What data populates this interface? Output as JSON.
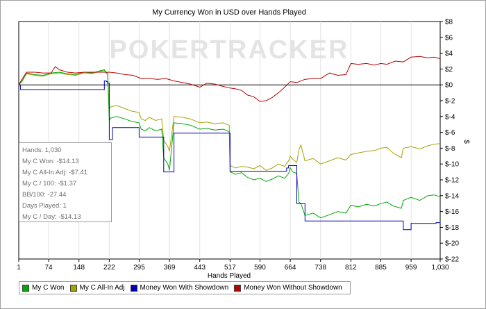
{
  "chart_data": {
    "type": "line",
    "title": "My Currency Won in USD over Hands Played",
    "xlabel": "Hands Played",
    "ylabel": "$",
    "watermark": "POKERTRACKER",
    "xlim": [
      1,
      1030
    ],
    "ylim": [
      -22,
      8
    ],
    "xticks": [
      1,
      74,
      148,
      222,
      295,
      369,
      443,
      517,
      590,
      664,
      738,
      812,
      885,
      959,
      1030
    ],
    "xtick_labels": [
      "1",
      "74",
      "148",
      "222",
      "295",
      "369",
      "443",
      "517",
      "590",
      "664",
      "738",
      "812",
      "885",
      "959",
      "1,030"
    ],
    "yticks": [
      8,
      6,
      4,
      2,
      0,
      -2,
      -4,
      -6,
      -8,
      -10,
      -12,
      -14,
      -16,
      -18,
      -20,
      -22
    ],
    "ytick_labels": [
      "$8",
      "$6",
      "$4",
      "$2",
      "$0",
      "$-2",
      "$-4",
      "$-6",
      "$-8",
      "$-10",
      "$-12",
      "$-14",
      "$-16",
      "$-18",
      "$-20",
      "$-22"
    ],
    "grid": "vertical",
    "legend_position": "bottom-left",
    "series": [
      {
        "name": "My C Won",
        "color": "#00aa00",
        "x": [
          1,
          10,
          20,
          40,
          60,
          80,
          100,
          120,
          140,
          160,
          180,
          200,
          210,
          215,
          218,
          222,
          225,
          240,
          260,
          275,
          295,
          300,
          310,
          320,
          335,
          350,
          355,
          365,
          369,
          380,
          400,
          420,
          443,
          460,
          480,
          500,
          515,
          517,
          530,
          545,
          560,
          575,
          590,
          605,
          620,
          635,
          650,
          660,
          664,
          670,
          680,
          685,
          690,
          700,
          720,
          738,
          760,
          780,
          800,
          812,
          830,
          850,
          870,
          885,
          900,
          915,
          935,
          940,
          959,
          980,
          1000,
          1015,
          1030
        ],
        "y": [
          0,
          0.5,
          1.5,
          1.3,
          1.2,
          1.5,
          1.6,
          1.4,
          1.3,
          1.6,
          1.5,
          1.8,
          1.9,
          1.5,
          1.6,
          -4.5,
          -4.2,
          -4.0,
          -4.3,
          -4.6,
          -4.8,
          -5.6,
          -5.8,
          -5.4,
          -5.8,
          -5.6,
          -9.2,
          -10.0,
          -10.8,
          -4.8,
          -4.9,
          -5.1,
          -5.6,
          -5.5,
          -5.7,
          -5.6,
          -5.9,
          -11.0,
          -11.3,
          -11.1,
          -11.7,
          -12.0,
          -11.8,
          -12.2,
          -11.9,
          -11.5,
          -11.8,
          -11.2,
          -10.5,
          -11.0,
          -11.2,
          -14.8,
          -15.0,
          -16.5,
          -16.2,
          -16.8,
          -16.4,
          -16.0,
          -16.2,
          -15.2,
          -15.4,
          -15.1,
          -15.3,
          -15.0,
          -14.8,
          -15.3,
          -15.6,
          -14.6,
          -14.2,
          -14.6,
          -14.0,
          -13.9,
          -14.13
        ]
      },
      {
        "name": "My C All-In Adj",
        "color": "#a4a400",
        "x": [
          1,
          10,
          20,
          40,
          60,
          80,
          100,
          120,
          140,
          160,
          180,
          200,
          210,
          215,
          218,
          222,
          225,
          240,
          260,
          275,
          295,
          300,
          310,
          320,
          335,
          350,
          355,
          365,
          369,
          380,
          400,
          420,
          443,
          460,
          480,
          500,
          515,
          517,
          530,
          545,
          560,
          575,
          590,
          605,
          620,
          635,
          650,
          660,
          664,
          670,
          680,
          685,
          690,
          700,
          720,
          738,
          760,
          780,
          800,
          812,
          830,
          850,
          870,
          885,
          900,
          915,
          935,
          940,
          959,
          980,
          1000,
          1015,
          1030
        ],
        "y": [
          0,
          0.6,
          1.4,
          1.2,
          1.1,
          1.4,
          1.5,
          1.3,
          1.2,
          1.5,
          1.4,
          1.7,
          1.8,
          1.4,
          1.5,
          -3.1,
          -2.8,
          -2.6,
          -3.0,
          -3.3,
          -3.5,
          -4.3,
          -4.5,
          -4.1,
          -4.5,
          -4.3,
          -7.0,
          -7.8,
          -8.4,
          -4.0,
          -4.1,
          -4.3,
          -4.8,
          -4.7,
          -4.9,
          -4.8,
          -5.1,
          -10.2,
          -10.5,
          -10.3,
          -10.4,
          -10.6,
          -10.2,
          -10.8,
          -10.5,
          -10.0,
          -10.3,
          -9.6,
          -9.0,
          -9.4,
          -9.8,
          -8.2,
          -7.6,
          -9.6,
          -9.3,
          -10.0,
          -9.6,
          -9.2,
          -9.5,
          -8.8,
          -8.6,
          -8.4,
          -8.3,
          -8.0,
          -7.9,
          -8.6,
          -9.2,
          -8.0,
          -7.8,
          -8.1,
          -7.7,
          -7.5,
          -7.41
        ]
      },
      {
        "name": "Money Won With Showdown",
        "color": "#0000bb",
        "x": [
          1,
          5,
          10,
          40,
          60,
          100,
          140,
          180,
          210,
          215,
          218,
          222,
          225,
          230,
          240,
          270,
          290,
          295,
          300,
          340,
          350,
          355,
          365,
          369,
          380,
          420,
          460,
          500,
          515,
          517,
          530,
          560,
          580,
          600,
          620,
          640,
          655,
          660,
          664,
          670,
          680,
          685,
          690,
          700,
          720,
          738,
          780,
          820,
          860,
          900,
          935,
          940,
          950,
          959,
          980,
          1000,
          1020,
          1030
        ],
        "y": [
          0,
          -0.6,
          -0.6,
          -0.6,
          -0.6,
          -0.6,
          -0.6,
          -0.6,
          0.5,
          0.4,
          0.2,
          -6.9,
          -6.9,
          -5.4,
          -5.4,
          -5.4,
          -5.4,
          -6.6,
          -6.6,
          -6.6,
          -6.6,
          -11.0,
          -11.0,
          -11.0,
          -6.1,
          -6.1,
          -6.1,
          -6.1,
          -6.1,
          -10.9,
          -10.9,
          -10.9,
          -10.9,
          -10.9,
          -10.9,
          -10.9,
          -10.5,
          -10.2,
          -10.2,
          -10.2,
          -15.0,
          -15.0,
          -15.0,
          -17.2,
          -17.2,
          -17.2,
          -17.2,
          -17.2,
          -17.2,
          -17.2,
          -17.2,
          -18.3,
          -18.3,
          -17.5,
          -17.5,
          -17.5,
          -17.4,
          -17.3
        ]
      },
      {
        "name": "Money Won Without Showdown",
        "color": "#bb0000",
        "x": [
          1,
          10,
          20,
          40,
          60,
          80,
          90,
          100,
          120,
          140,
          160,
          180,
          200,
          222,
          240,
          260,
          280,
          300,
          320,
          340,
          360,
          380,
          400,
          420,
          443,
          460,
          480,
          500,
          517,
          530,
          545,
          560,
          575,
          590,
          605,
          620,
          640,
          664,
          680,
          700,
          720,
          738,
          760,
          780,
          800,
          812,
          830,
          850,
          870,
          885,
          900,
          920,
          940,
          959,
          980,
          1000,
          1015,
          1030
        ],
        "y": [
          0,
          0.8,
          1.6,
          1.6,
          1.5,
          1.5,
          2.3,
          1.9,
          1.6,
          1.5,
          1.6,
          1.6,
          1.6,
          1.6,
          1.5,
          1.3,
          1.2,
          0.8,
          0.8,
          0.7,
          0.8,
          0.5,
          0.3,
          0.1,
          -0.3,
          0.2,
          0.1,
          -0.2,
          -0.4,
          -0.5,
          -0.7,
          -1.3,
          -1.5,
          -2.1,
          -2.0,
          -1.6,
          -0.8,
          0.4,
          0.3,
          0.7,
          0.8,
          0.8,
          1.5,
          1.2,
          1.3,
          2.7,
          2.6,
          2.7,
          2.5,
          2.7,
          2.6,
          3.0,
          2.9,
          3.5,
          3.6,
          3.4,
          3.5,
          3.3
        ]
      }
    ]
  },
  "stats": [
    "Hands: 1,030",
    "My C Won: -$14.13",
    "My C All-In Adj: -$7.41",
    "My C / 100: -$1.37",
    "BB/100: -27.44",
    "Days Played: 1",
    "My C / Day: -$14.13"
  ],
  "legend": [
    {
      "label": "My C Won",
      "color": "#00aa00"
    },
    {
      "label": "My C All-In Adj",
      "color": "#a4a400"
    },
    {
      "label": "Money Won With Showdown",
      "color": "#0000bb"
    },
    {
      "label": "Money Won Without Showdown",
      "color": "#bb0000"
    }
  ]
}
